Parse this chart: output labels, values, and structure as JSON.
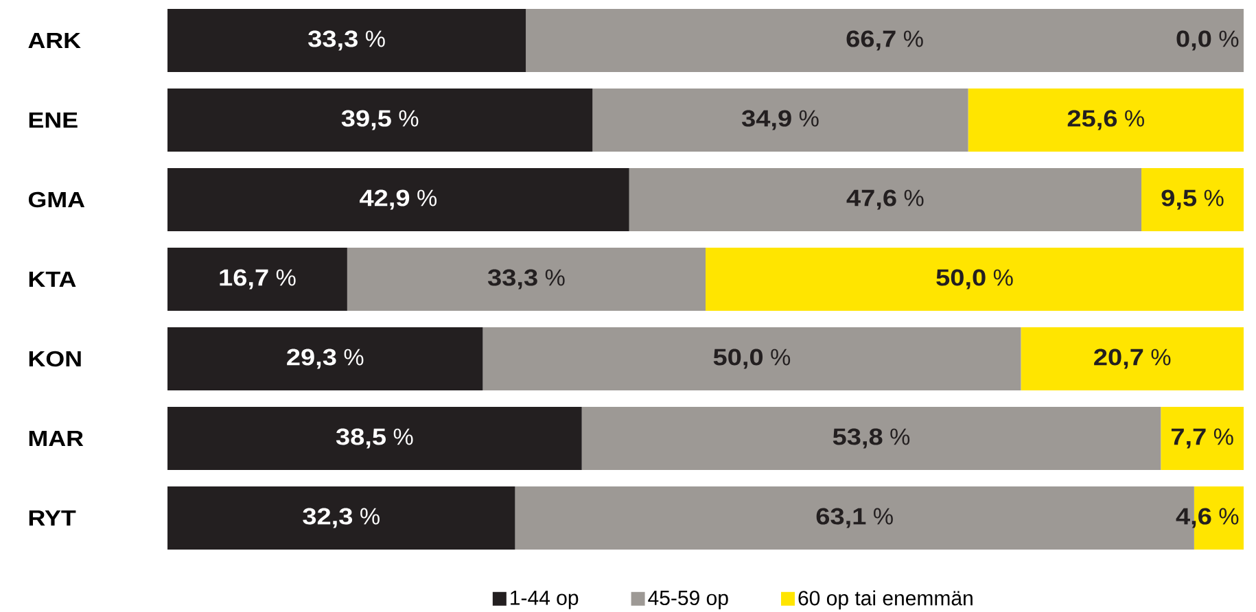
{
  "chart_data": {
    "type": "bar",
    "orientation": "horizontal",
    "stacked": true,
    "categories": [
      "ARK",
      "ENE",
      "GMA",
      "KTA",
      "KON",
      "MAR",
      "RYT"
    ],
    "series": [
      {
        "name": "1-44 op",
        "color": "#231f20",
        "values": [
          33.3,
          39.5,
          42.9,
          16.7,
          29.3,
          38.5,
          32.3
        ],
        "value_labels": [
          "**33,3** %",
          "**39,5** %",
          "**42,9** %",
          "**16,7** %",
          "**29,3** %",
          "**38,5** %",
          "**32,3** %"
        ]
      },
      {
        "name": "45-59 op",
        "color": "#9d9995",
        "values": [
          66.7,
          34.9,
          47.6,
          33.3,
          50.0,
          53.8,
          63.1
        ],
        "value_labels": [
          "**66,7** %",
          "**34,9** %",
          "**47,6** %",
          "**33,3** %",
          "**50,0** %",
          "**53,8** %",
          "**63,1** %"
        ]
      },
      {
        "name": "60 op tai enemmän",
        "color": "#ffe500",
        "values": [
          0.0,
          25.6,
          9.5,
          50.0,
          20.7,
          7.7,
          4.6
        ],
        "value_labels": [
          "**0,0** %",
          "**25,6** %",
          "**9,5** %",
          "**50,0** %",
          "**20,7** %",
          "**7,7** %",
          "**4,6** %"
        ]
      }
    ],
    "xlim": [
      0,
      100
    ],
    "tick_labels": "y",
    "legend": "bottom"
  }
}
